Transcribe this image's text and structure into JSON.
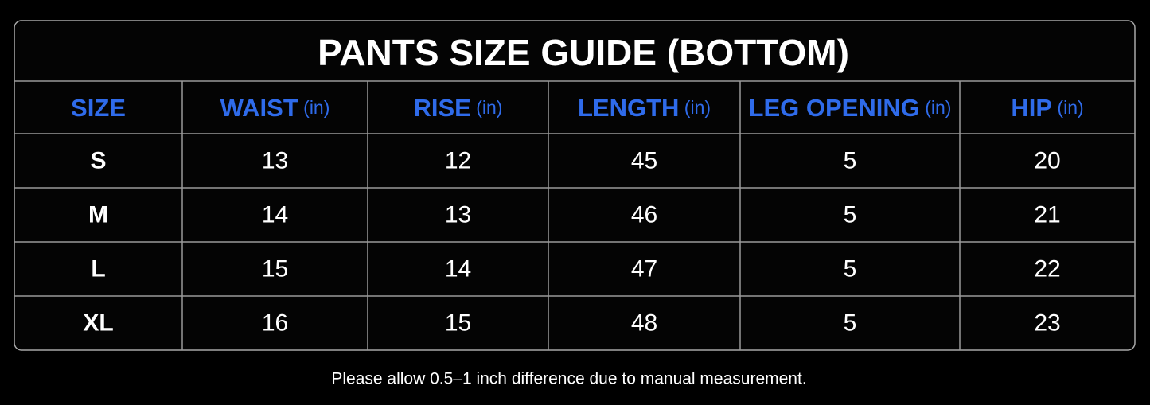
{
  "title": "PANTS SIZE GUIDE (BOTTOM)",
  "table": {
    "headers": [
      {
        "label": "SIZE"
      },
      {
        "label": "WAIST",
        "unit": "(in)"
      },
      {
        "label": "RISE",
        "unit": "(in)"
      },
      {
        "label": "LENGTH",
        "unit": "(in)"
      },
      {
        "label": "LEG OPENING",
        "unit": "(in)"
      },
      {
        "label": "HIP",
        "unit": "(in)"
      }
    ],
    "rows": [
      [
        "S",
        13,
        12,
        45,
        5,
        20
      ],
      [
        "M",
        14,
        13,
        46,
        5,
        21
      ],
      [
        "L",
        15,
        14,
        47,
        5,
        22
      ],
      [
        "XL",
        16,
        15,
        48,
        5,
        23
      ]
    ]
  },
  "note": "Please allow 0.5–1 inch difference due to manual measurement."
}
